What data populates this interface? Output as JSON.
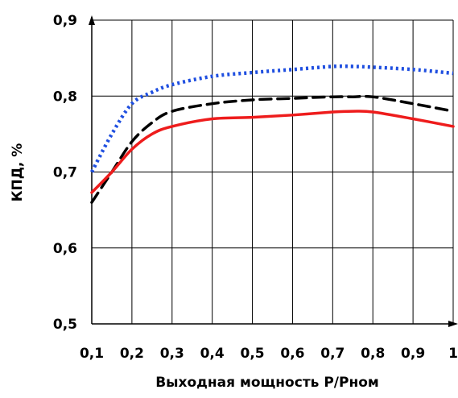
{
  "chart_data": {
    "type": "line",
    "title": "",
    "xlabel": "Выходная мощность P/Pном",
    "ylabel": "КПД, %",
    "xlim": [
      0.1,
      1.0
    ],
    "ylim": [
      0.5,
      0.9
    ],
    "grid": true,
    "x_ticks": [
      "0,1",
      "0,2",
      "0,3",
      "0,4",
      "0,5",
      "0,6",
      "0,7",
      "0,8",
      "0,9",
      "1"
    ],
    "y_ticks": [
      "0,5",
      "0,6",
      "0,7",
      "0,8",
      "0,9"
    ],
    "series": [
      {
        "style": "dotted",
        "color": "#1f4fe0",
        "x": [
          0.1,
          0.15,
          0.2,
          0.25,
          0.3,
          0.4,
          0.5,
          0.6,
          0.7,
          0.75,
          0.8,
          0.9,
          1.0
        ],
        "y": [
          0.7,
          0.75,
          0.79,
          0.805,
          0.815,
          0.826,
          0.831,
          0.835,
          0.839,
          0.839,
          0.838,
          0.835,
          0.83
        ]
      },
      {
        "style": "dashed",
        "color": "#000000",
        "x": [
          0.1,
          0.15,
          0.2,
          0.25,
          0.3,
          0.4,
          0.5,
          0.6,
          0.7,
          0.75,
          0.8,
          0.9,
          1.0
        ],
        "y": [
          0.66,
          0.7,
          0.74,
          0.765,
          0.78,
          0.79,
          0.795,
          0.797,
          0.799,
          0.799,
          0.799,
          0.79,
          0.78
        ]
      },
      {
        "style": "solid",
        "color": "#ee1c1c",
        "x": [
          0.1,
          0.15,
          0.2,
          0.25,
          0.3,
          0.4,
          0.5,
          0.6,
          0.7,
          0.75,
          0.8,
          0.9,
          1.0
        ],
        "y": [
          0.673,
          0.7,
          0.73,
          0.75,
          0.76,
          0.77,
          0.772,
          0.775,
          0.779,
          0.78,
          0.779,
          0.77,
          0.76
        ]
      }
    ]
  }
}
